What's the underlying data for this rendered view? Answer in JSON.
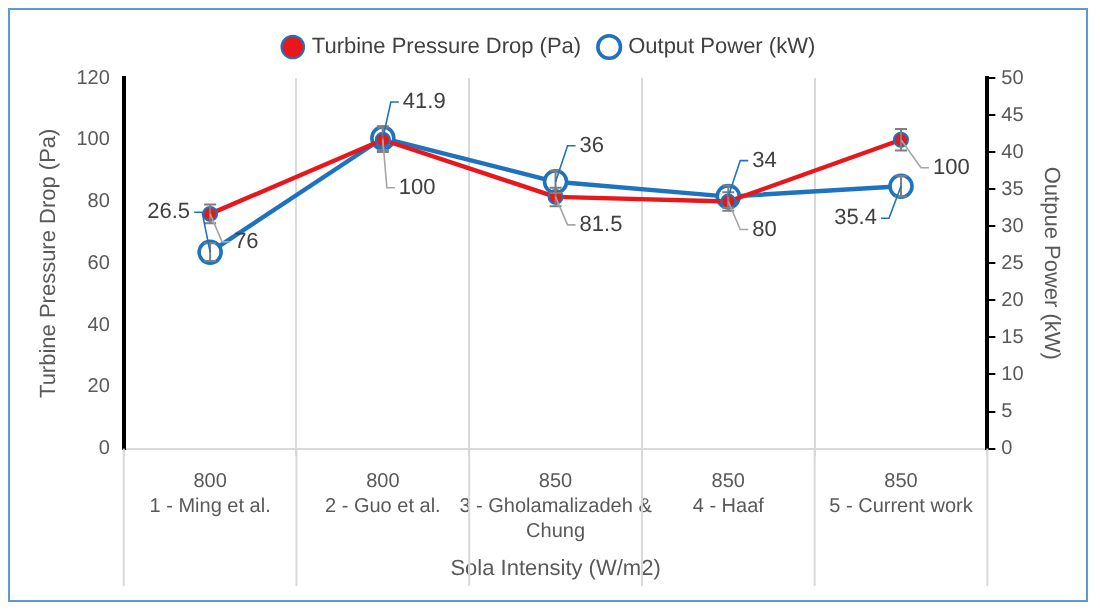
{
  "chart_data": {
    "type": "line",
    "xlabel": "Sola Intensity (W/m2)",
    "ylabel": "Turbine Pressure Drop (Pa)",
    "y2label": "Outpue Power (kW)",
    "categories": [
      "800\n1 - Ming et al.",
      "800\n2 - Guo et al.",
      "850\n3 - Gholamalizadeh & Chung",
      "850\n4 - Haaf",
      "850\n5 - Current work"
    ],
    "series": [
      {
        "name": "Turbine Pressure Drop (Pa)",
        "color": "#e8171b",
        "values": [
          76,
          100,
          81.5,
          80,
          100
        ],
        "errors": [
          3,
          4,
          3,
          3,
          3.5
        ]
      },
      {
        "name": "Output Power (kW)",
        "color": "#1e73be",
        "values": [
          26.5,
          41.9,
          36,
          34,
          35.4
        ],
        "errors": [
          1.2,
          1.6,
          1.5,
          1.5,
          1.4
        ],
        "axis": "y2"
      }
    ],
    "ylim": [
      0,
      120
    ],
    "yticks": [
      0,
      20,
      40,
      60,
      80,
      100,
      120
    ],
    "y2lim": [
      0,
      50
    ],
    "y2ticks": [
      0,
      5,
      10,
      15,
      20,
      25,
      30,
      35,
      40,
      45,
      50
    ],
    "grid": "x",
    "legend": "top",
    "marker": "circle",
    "data_labels": true
  }
}
